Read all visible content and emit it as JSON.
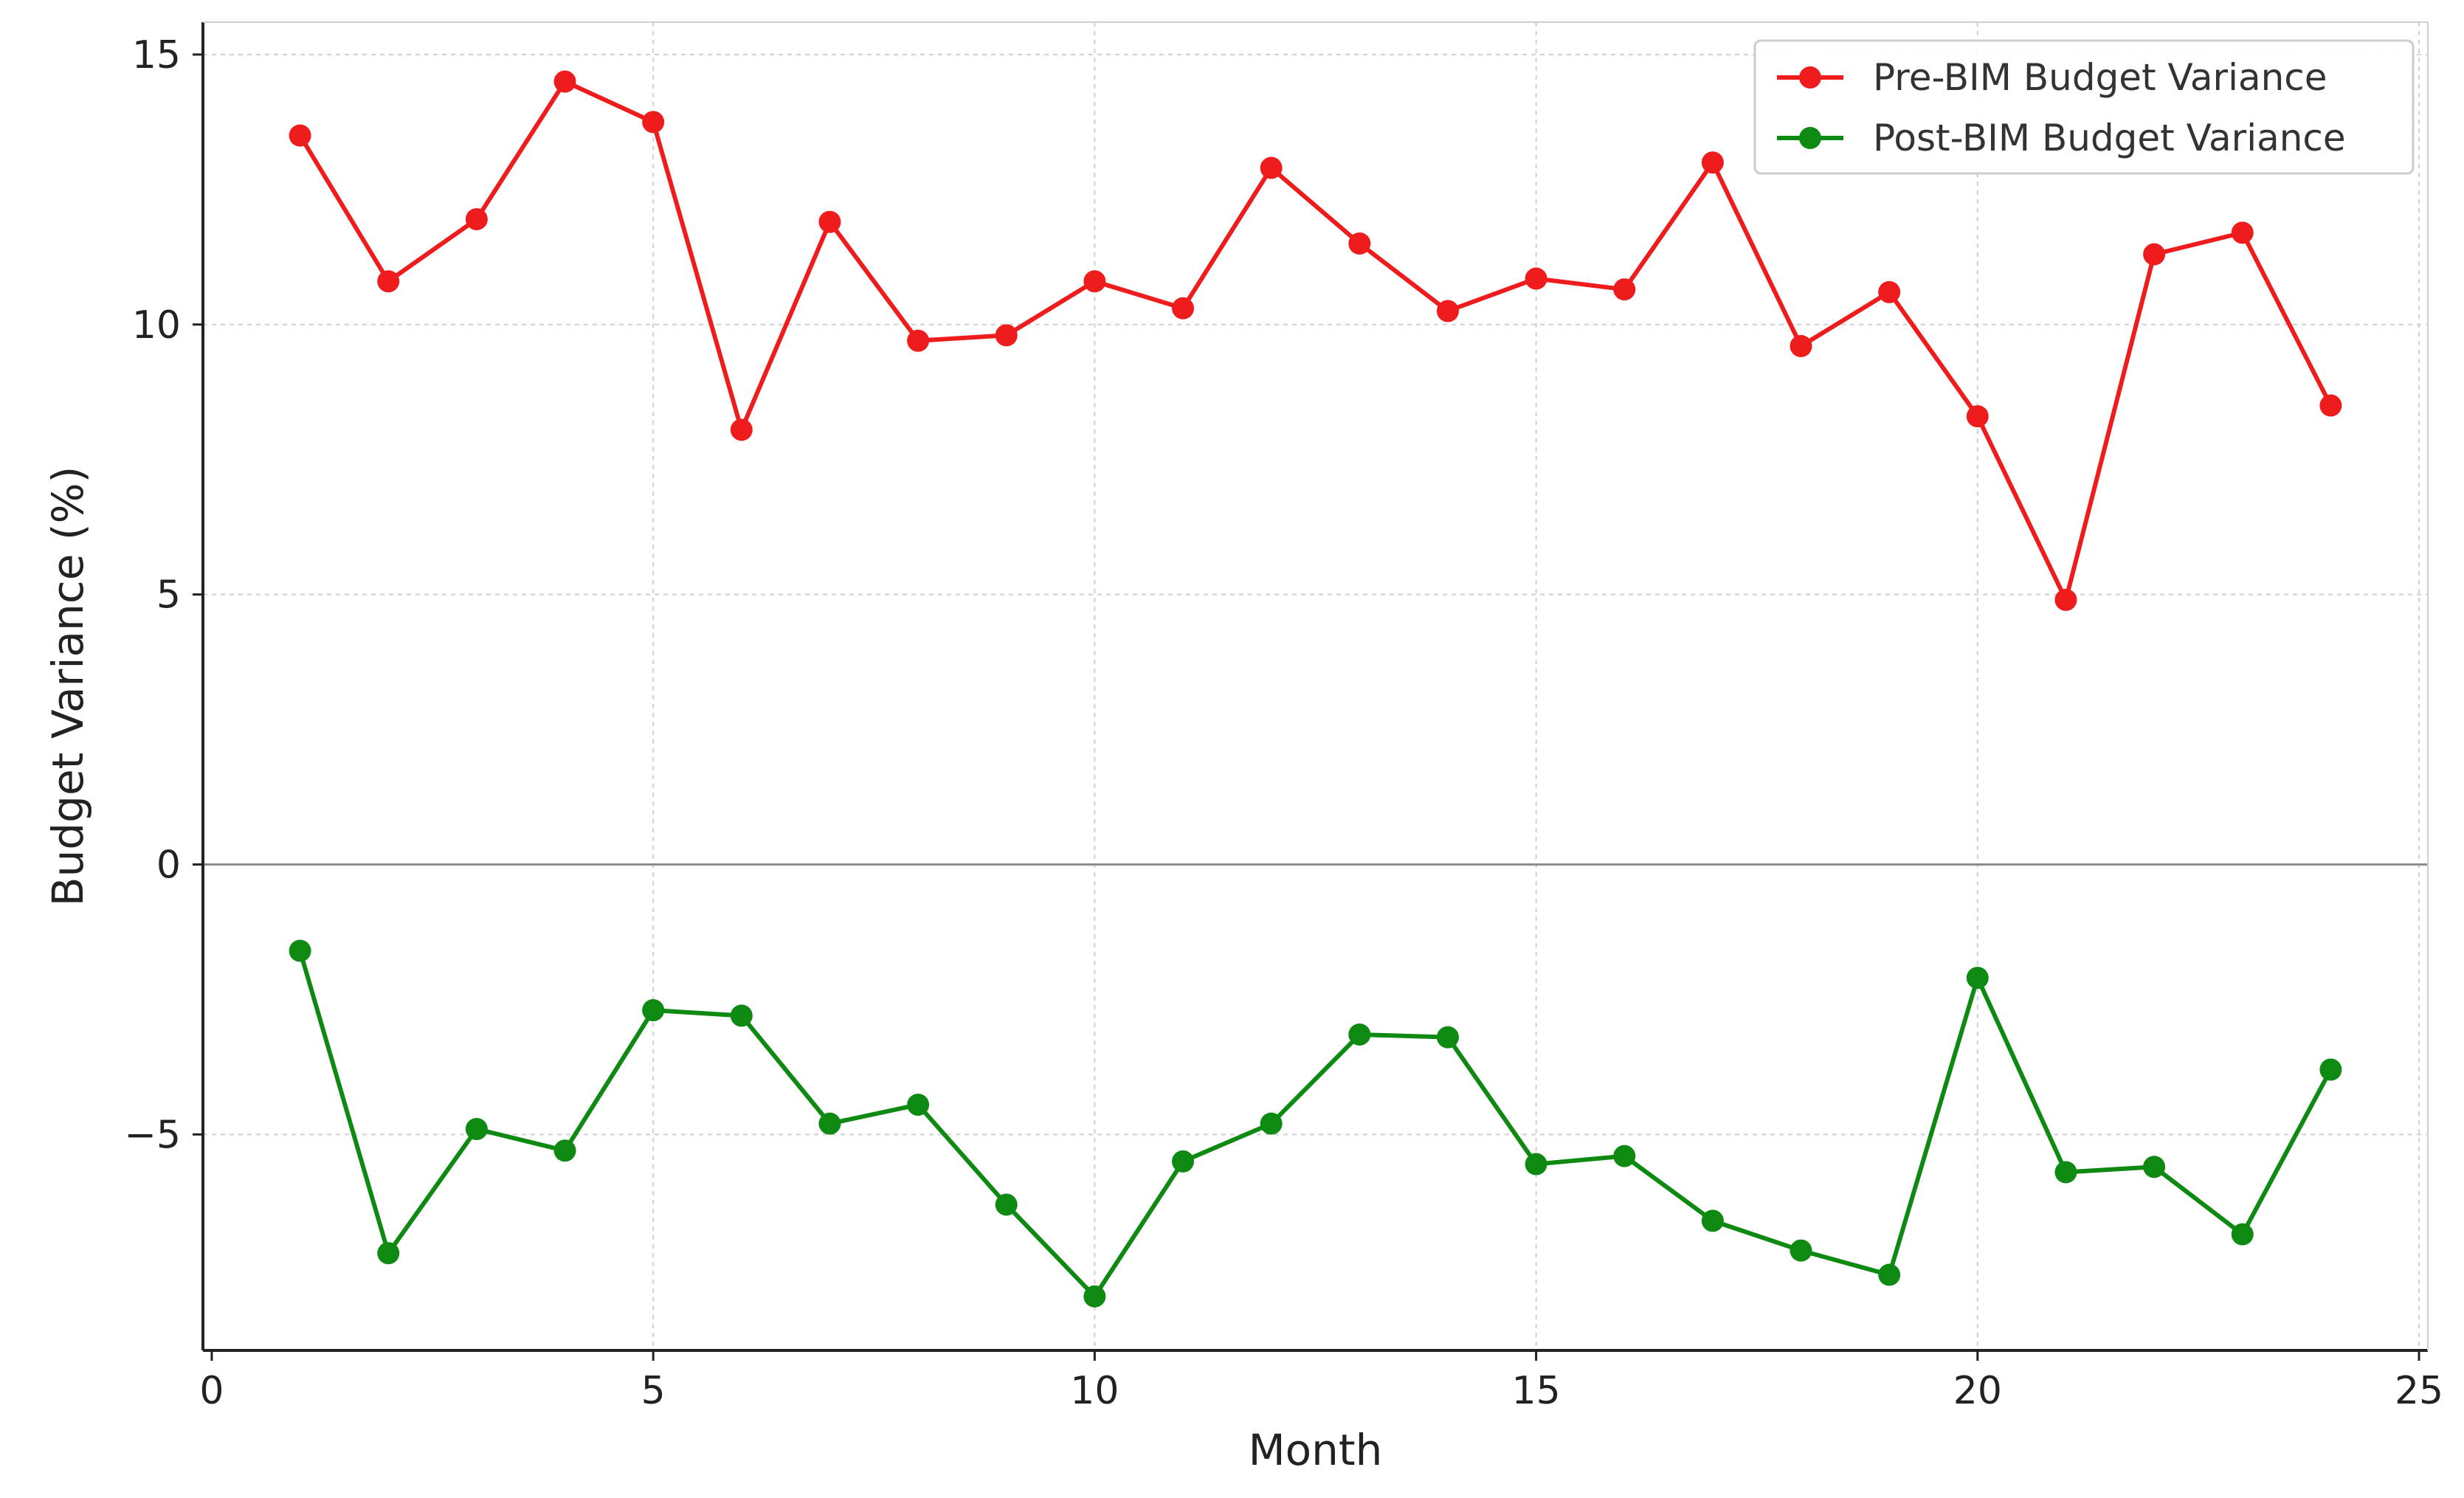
{
  "chart_data": {
    "type": "line",
    "title": "",
    "xlabel": "Month",
    "ylabel": "Budget Variance (%)",
    "xlim": [
      -0.1,
      25.1
    ],
    "ylim": [
      -9,
      15.6
    ],
    "xticks": [
      0,
      5,
      10,
      15,
      20,
      25
    ],
    "yticks": [
      -5,
      0,
      5,
      10,
      15
    ],
    "ytick_labels": [
      "−5",
      "0",
      "5",
      "10",
      "15"
    ],
    "grid": true,
    "zero_line": true,
    "legend_position": "top-right",
    "x": [
      1,
      2,
      3,
      4,
      5,
      6,
      7,
      8,
      9,
      10,
      11,
      12,
      13,
      14,
      15,
      16,
      17,
      18,
      19,
      20,
      21,
      22,
      23,
      24
    ],
    "series": [
      {
        "name": "Pre-BIM Budget Variance",
        "color": "#ee1c1c",
        "values": [
          13.5,
          10.8,
          11.95,
          14.5,
          13.75,
          8.05,
          11.9,
          9.7,
          9.8,
          10.8,
          10.3,
          12.9,
          11.5,
          10.25,
          10.85,
          10.65,
          13.0,
          9.6,
          10.6,
          8.3,
          4.9,
          11.3,
          11.7,
          8.5
        ]
      },
      {
        "name": "Post-BIM Budget Variance",
        "color": "#0e8a12",
        "values": [
          -1.6,
          -7.2,
          -4.9,
          -5.3,
          -2.7,
          -2.8,
          -4.8,
          -4.45,
          -6.3,
          -8.0,
          -5.5,
          -4.8,
          -3.15,
          -3.2,
          -5.55,
          -5.4,
          -6.6,
          -7.15,
          -7.6,
          -2.1,
          -5.7,
          -5.6,
          -6.85,
          -3.8
        ]
      }
    ]
  }
}
